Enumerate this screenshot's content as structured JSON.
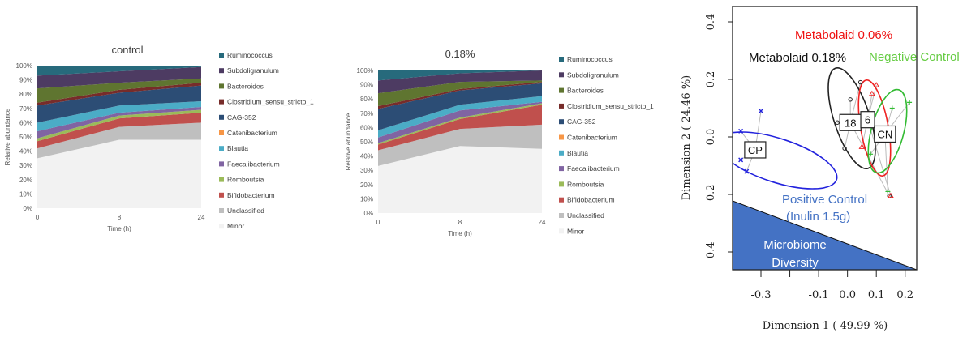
{
  "chart_data": [
    {
      "type": "area",
      "stacked": true,
      "title": "control",
      "xlabel": "Time (h)",
      "ylabel": "Relative abundance",
      "categories": [
        "0",
        "8",
        "24"
      ],
      "yticks": [
        "0%",
        "10%",
        "20%",
        "30%",
        "40%",
        "50%",
        "60%",
        "70%",
        "80%",
        "90%",
        "100%"
      ],
      "ylim": [
        0,
        100
      ],
      "legend_position": "right",
      "series": [
        {
          "name": "Minor",
          "color": "#F2F2F2",
          "values": [
            35,
            48,
            48
          ]
        },
        {
          "name": "Unclassified",
          "color": "#BFBFBF",
          "values": [
            7,
            9,
            12
          ]
        },
        {
          "name": "Bifidobacterium",
          "color": "#C0504D",
          "values": [
            5,
            6,
            7
          ]
        },
        {
          "name": "Romboutsia",
          "color": "#9BBB59",
          "values": [
            2,
            2,
            2
          ]
        },
        {
          "name": "Faecalibacterium",
          "color": "#8064A2",
          "values": [
            5,
            2,
            2
          ]
        },
        {
          "name": "Blautia",
          "color": "#4BACC6",
          "values": [
            6,
            5,
            4
          ]
        },
        {
          "name": "Catenibacterium",
          "color": "#F79646",
          "values": [
            0,
            0,
            0
          ]
        },
        {
          "name": "CAG-352",
          "color": "#2C4D75",
          "values": [
            12,
            9,
            11
          ]
        },
        {
          "name": "Clostridium_sensu_stricto_1",
          "color": "#772C2A",
          "values": [
            2,
            2,
            2
          ]
        },
        {
          "name": "Bacteroides",
          "color": "#5F7530",
          "values": [
            10,
            5,
            3
          ]
        },
        {
          "name": "Subdoligranulum",
          "color": "#4D3B62",
          "values": [
            9,
            8,
            8
          ]
        },
        {
          "name": "Ruminococcus",
          "color": "#276A7C",
          "values": [
            7,
            4,
            1
          ]
        }
      ]
    },
    {
      "type": "area",
      "stacked": true,
      "title": "0.18%",
      "xlabel": "Time (h)",
      "ylabel": "Relative abundance",
      "categories": [
        "0",
        "8",
        "24"
      ],
      "yticks": [
        "0%",
        "10%",
        "20%",
        "30%",
        "40%",
        "50%",
        "60%",
        "70%",
        "80%",
        "90%",
        "100%"
      ],
      "ylim": [
        0,
        100
      ],
      "legend_position": "right",
      "series": [
        {
          "name": "Minor",
          "color": "#F2F2F2",
          "values": [
            33,
            47,
            45
          ]
        },
        {
          "name": "Unclassified",
          "color": "#BFBFBF",
          "values": [
            11,
            12,
            17
          ]
        },
        {
          "name": "Bifidobacterium",
          "color": "#C0504D",
          "values": [
            4,
            7,
            14
          ]
        },
        {
          "name": "Romboutsia",
          "color": "#9BBB59",
          "values": [
            1,
            1,
            1
          ]
        },
        {
          "name": "Faecalibacterium",
          "color": "#8064A2",
          "values": [
            4,
            5,
            1
          ]
        },
        {
          "name": "Blautia",
          "color": "#4BACC6",
          "values": [
            5,
            4,
            4
          ]
        },
        {
          "name": "Catenibacterium",
          "color": "#F79646",
          "values": [
            0,
            0,
            0
          ]
        },
        {
          "name": "CAG-352",
          "color": "#2C4D75",
          "values": [
            15,
            10,
            9
          ]
        },
        {
          "name": "Clostridium_sensu_stricto_1",
          "color": "#772C2A",
          "values": [
            2,
            1,
            1
          ]
        },
        {
          "name": "Bacteroides",
          "color": "#5F7530",
          "values": [
            9,
            5,
            1
          ]
        },
        {
          "name": "Subdoligranulum",
          "color": "#4D3B62",
          "values": [
            9,
            6,
            7
          ]
        },
        {
          "name": "Ruminococcus",
          "color": "#276A7C",
          "values": [
            7,
            2,
            0
          ]
        }
      ]
    },
    {
      "type": "scatter",
      "xlabel": "Dimension 1 ( 49.99 %)",
      "ylabel": "Dimension 2 ( 24.46 %)",
      "xlim": [
        -0.4,
        0.24
      ],
      "ylim": [
        -0.46,
        0.45
      ],
      "xticks": [
        -0.3,
        -0.2,
        -0.1,
        0.0,
        0.1,
        0.2
      ],
      "xtick_labels": [
        "-0.3",
        "",
        "-0.1",
        "0.0",
        "0.1",
        "0.2"
      ],
      "yticks": [
        -0.4,
        -0.2,
        0.0,
        0.2,
        0.4
      ],
      "ytick_labels": [
        "-0.4",
        "-0.2",
        "0.0",
        "0.2",
        "0.4"
      ],
      "groups": [
        {
          "name": "Positive Control (Inulin 1.5g)",
          "label": "CP",
          "color": "#2222DD",
          "marker": "x",
          "centroid": [
            -0.32,
            -0.045
          ],
          "points": [
            [
              -0.37,
              0.02
            ],
            [
              -0.3,
              0.09
            ],
            [
              -0.37,
              -0.08
            ],
            [
              -0.35,
              -0.12
            ]
          ]
        },
        {
          "name": "Metabolaid 0.18%",
          "label": "18",
          "color": "#222222",
          "marker": "o",
          "centroid": [
            0.01,
            0.05
          ],
          "points": [
            [
              0.045,
              0.19
            ],
            [
              0.01,
              0.13
            ],
            [
              -0.035,
              0.05
            ],
            [
              -0.01,
              -0.04
            ],
            [
              0.145,
              -0.205
            ]
          ]
        },
        {
          "name": "Metabolaid 0.06%",
          "label": "6",
          "color": "#EE2222",
          "marker": "triangle",
          "centroid": [
            0.07,
            0.06
          ],
          "points": [
            [
              0.1,
              0.18
            ],
            [
              0.085,
              0.15
            ],
            [
              0.05,
              -0.035
            ],
            [
              0.15,
              -0.205
            ]
          ]
        },
        {
          "name": "Negative Control",
          "label": "CN",
          "color": "#33BB33",
          "marker": "+",
          "centroid": [
            0.13,
            0.01
          ],
          "points": [
            [
              0.155,
              0.1
            ],
            [
              0.215,
              0.12
            ],
            [
              0.08,
              -0.06
            ],
            [
              0.14,
              -0.19
            ]
          ]
        }
      ],
      "annotations": {
        "metabolaid_006": "Metabolaid 0.06%",
        "metabolaid_018": "Metabolaid 0.18%",
        "negative_control": "Negative Control",
        "positive_control": "Positive Control",
        "inulin": "(Inulin 1.5g)",
        "diversity_line1": "Microbiome",
        "diversity_line2": "Diversity"
      },
      "annotation_colors": {
        "metabolaid_006": "#EE1111",
        "metabolaid_018": "#111111",
        "negative_control": "#66CC44",
        "positive_control": "#4472C4",
        "diversity_fill": "#4472C4"
      }
    }
  ]
}
